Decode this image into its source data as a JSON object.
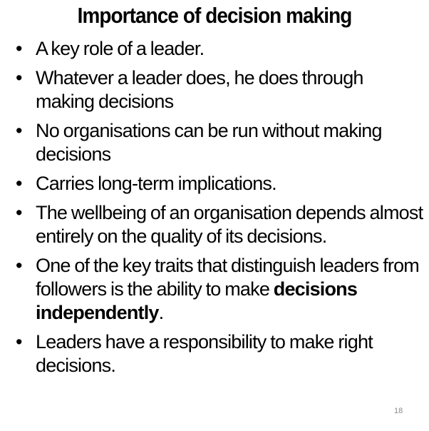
{
  "slide": {
    "title": "Importance of decision making",
    "bullet_symbol": "•",
    "bullets": [
      {
        "text": "A key role of a leader."
      },
      {
        "text": "Whatever a leader does, he does through making decisions"
      },
      {
        "text": "No organisations can be run without making decisions"
      },
      {
        "text": "Carries long-term implications."
      },
      {
        "text": "The wellbeing of an organisation depends almost entirely on the quality of its decisions."
      },
      {
        "text_before": "One of the key traits that distinguish leaders from followers is the ability to make ",
        "text_bold": "decisions independently",
        "text_after": "."
      },
      {
        "text": "Leaders have a responsibility to make right decisions."
      }
    ],
    "page_number": "18"
  }
}
